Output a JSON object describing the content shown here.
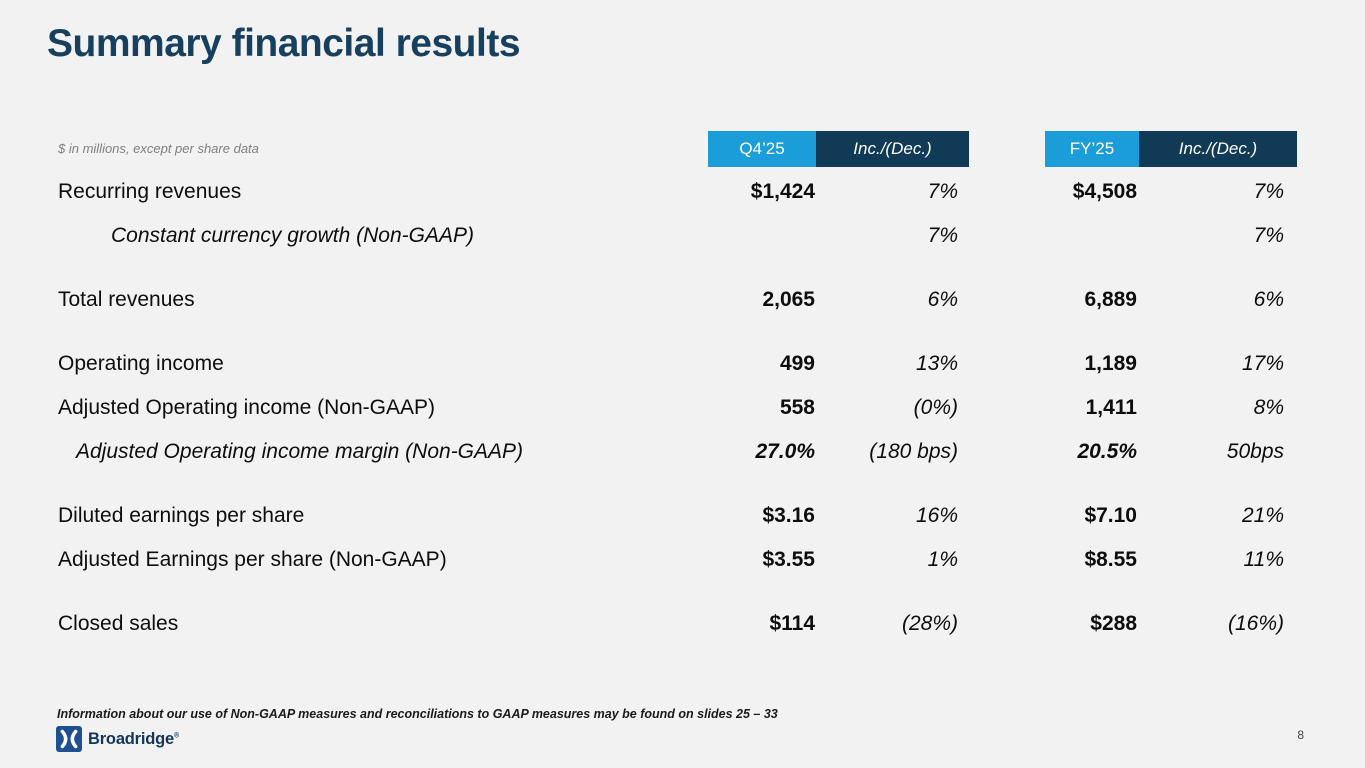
{
  "slide": {
    "title": "Summary financial results",
    "units_note": "$ in millions, except per share data",
    "footnote": "Information about our use of Non-GAAP measures and reconciliations to GAAP measures may be found on slides 25 – 33",
    "page_number": "8",
    "brand": {
      "name": "Broadridge",
      "registered_mark": "®",
      "logo_icon": "broadridge-bowtie-icon"
    }
  },
  "colors": {
    "background": "#f2f2f2",
    "title_navy": "#17405f",
    "header_light_blue": "#1b9dd9",
    "header_dark_navy": "#113a57",
    "logo_blue": "#1d4f91",
    "note_gray": "#7f7f7f",
    "text_black": "#0d0d0d"
  },
  "table": {
    "header_groups": [
      {
        "period_label": "Q4’25",
        "change_label": "Inc./(Dec.)"
      },
      {
        "period_label": "FY’25",
        "change_label": "Inc./(Dec.)"
      }
    ],
    "rows": [
      {
        "label": "Recurring revenues",
        "style": "normal",
        "indent": "none",
        "spacer_before": false,
        "values_italic": false,
        "q4_value": "$1,424",
        "q4_change": "7%",
        "fy_value": "$4,508",
        "fy_change": "7%"
      },
      {
        "label": "Constant currency growth (Non-GAAP)",
        "style": "italic",
        "indent": "large",
        "spacer_before": false,
        "values_italic": false,
        "q4_value": "",
        "q4_change": "7%",
        "fy_value": "",
        "fy_change": "7%"
      },
      {
        "label": "Total revenues",
        "style": "normal",
        "indent": "none",
        "spacer_before": true,
        "values_italic": false,
        "q4_value": "2,065",
        "q4_change": "6%",
        "fy_value": "6,889",
        "fy_change": "6%"
      },
      {
        "label": "Operating income",
        "style": "normal",
        "indent": "none",
        "spacer_before": true,
        "values_italic": false,
        "q4_value": "499",
        "q4_change": "13%",
        "fy_value": "1,189",
        "fy_change": "17%"
      },
      {
        "label": "Adjusted Operating income (Non-GAAP)",
        "style": "normal",
        "indent": "none",
        "spacer_before": false,
        "values_italic": false,
        "q4_value": "558",
        "q4_change": "(0%)",
        "fy_value": "1,411",
        "fy_change": "8%"
      },
      {
        "label": "Adjusted Operating income margin (Non-GAAP)",
        "style": "italic",
        "indent": "small",
        "spacer_before": false,
        "values_italic": true,
        "q4_value": "27.0%",
        "q4_change": "(180 bps)",
        "fy_value": "20.5%",
        "fy_change": "50bps"
      },
      {
        "label": "Diluted earnings per share",
        "style": "normal",
        "indent": "none",
        "spacer_before": true,
        "values_italic": false,
        "q4_value": "$3.16",
        "q4_change": "16%",
        "fy_value": "$7.10",
        "fy_change": "21%"
      },
      {
        "label": "Adjusted Earnings per share (Non-GAAP)",
        "style": "normal",
        "indent": "none",
        "spacer_before": false,
        "values_italic": false,
        "q4_value": "$3.55",
        "q4_change": "1%",
        "fy_value": "$8.55",
        "fy_change": "11%"
      },
      {
        "label": "Closed sales",
        "style": "normal",
        "indent": "none",
        "spacer_before": true,
        "values_italic": false,
        "q4_value": "$114",
        "q4_change": "(28%)",
        "fy_value": "$288",
        "fy_change": "(16%)"
      }
    ]
  }
}
